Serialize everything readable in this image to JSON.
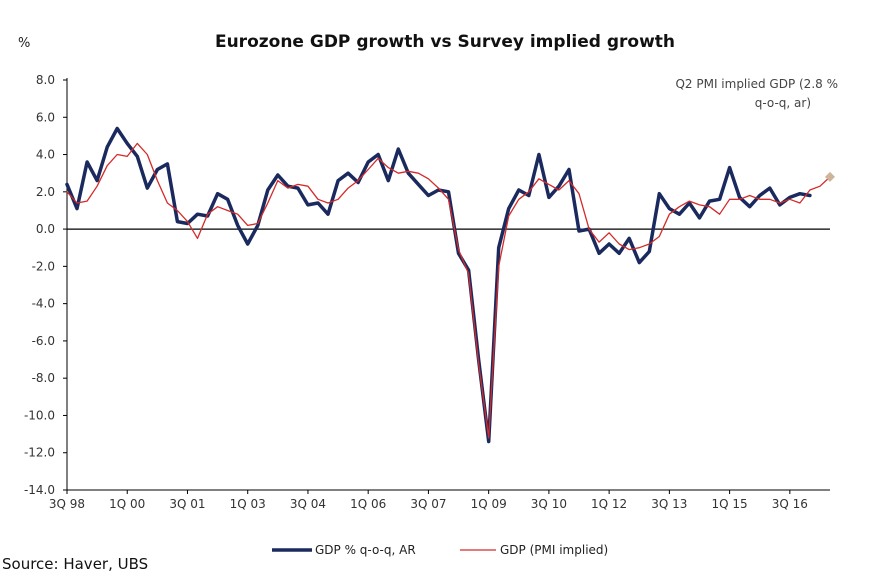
{
  "source": "Source: Haver, UBS",
  "chart_data": {
    "type": "line",
    "title": "Eurozone GDP growth vs Survey implied growth",
    "ylabel": "%",
    "xlabel": "",
    "ylim": [
      -14,
      8
    ],
    "yticks": [
      8.0,
      6.0,
      4.0,
      2.0,
      0.0,
      -2.0,
      -4.0,
      -6.0,
      -8.0,
      -10.0,
      -12.0,
      -14.0
    ],
    "ytick_labels": [
      "8.0",
      "6.0",
      "4.0",
      "2.0",
      "0.0",
      "-2.0",
      "-4.0",
      "-6.0",
      "-8.0",
      "-10.0",
      "-12.0",
      "-14.0"
    ],
    "xticks": [
      {
        "label": "3Q 98",
        "index": 0
      },
      {
        "label": "1Q 00",
        "index": 6
      },
      {
        "label": "3Q 01",
        "index": 12
      },
      {
        "label": "1Q 03",
        "index": 18
      },
      {
        "label": "3Q 04",
        "index": 24
      },
      {
        "label": "1Q 06",
        "index": 30
      },
      {
        "label": "3Q 07",
        "index": 36
      },
      {
        "label": "1Q 09",
        "index": 42
      },
      {
        "label": "3Q 10",
        "index": 48
      },
      {
        "label": "1Q 12",
        "index": 54
      },
      {
        "label": "3Q 13",
        "index": 60
      },
      {
        "label": "1Q 15",
        "index": 66
      },
      {
        "label": "3Q 16",
        "index": 72
      }
    ],
    "x_count": 77,
    "series": [
      {
        "name": "GDP % q-o-q, AR",
        "color": "#1b2a5e",
        "values": [
          2.4,
          1.1,
          3.6,
          2.6,
          4.4,
          5.4,
          4.6,
          3.9,
          2.2,
          3.2,
          3.5,
          0.4,
          0.3,
          0.8,
          0.7,
          1.9,
          1.6,
          0.2,
          -0.8,
          0.2,
          2.1,
          2.9,
          2.3,
          2.2,
          1.3,
          1.4,
          0.8,
          2.6,
          3.0,
          2.5,
          3.6,
          4.0,
          2.6,
          4.3,
          3.0,
          2.4,
          1.8,
          2.1,
          2.0,
          -1.3,
          -2.2,
          -7.0,
          -11.4,
          -1.0,
          1.1,
          2.1,
          1.8,
          4.0,
          1.7,
          2.3,
          3.2,
          -0.1,
          0.0,
          -1.3,
          -0.8,
          -1.3,
          -0.5,
          -1.8,
          -1.2,
          1.9,
          1.1,
          0.8,
          1.4,
          0.6,
          1.5,
          1.6,
          3.3,
          1.7,
          1.2,
          1.8,
          2.2,
          1.3,
          1.7,
          1.9,
          1.8
        ]
      },
      {
        "name": "GDP (PMI implied)",
        "color": "#d42a2a",
        "values": [
          2.0,
          1.4,
          1.5,
          2.3,
          3.4,
          4.0,
          3.9,
          4.6,
          4.0,
          2.6,
          1.4,
          1.0,
          0.4,
          -0.5,
          0.8,
          1.2,
          1.0,
          0.8,
          0.2,
          0.3,
          1.4,
          2.6,
          2.2,
          2.4,
          2.3,
          1.6,
          1.4,
          1.6,
          2.2,
          2.6,
          3.2,
          3.8,
          3.3,
          3.0,
          3.1,
          3.0,
          2.7,
          2.2,
          1.6,
          -1.1,
          -2.4,
          -7.2,
          -11.2,
          -2.0,
          0.7,
          1.6,
          2.0,
          2.7,
          2.4,
          2.1,
          2.6,
          1.9,
          0.0,
          -0.7,
          -0.2,
          -0.8,
          -1.1,
          -1.0,
          -0.8,
          -0.4,
          0.8,
          1.2,
          1.5,
          1.3,
          1.2,
          0.8,
          1.6,
          1.6,
          1.8,
          1.6,
          1.6,
          1.4,
          1.6,
          1.4,
          2.1,
          2.3,
          2.8
        ]
      }
    ],
    "highlight_point": {
      "index": 76,
      "value": 2.8,
      "color": "#cdb59a"
    },
    "annotation": [
      "Q2 PMI implied GDP (2.8 %",
      "q-o-q, ar)"
    ],
    "legend_position": "bottom",
    "grid": false
  }
}
